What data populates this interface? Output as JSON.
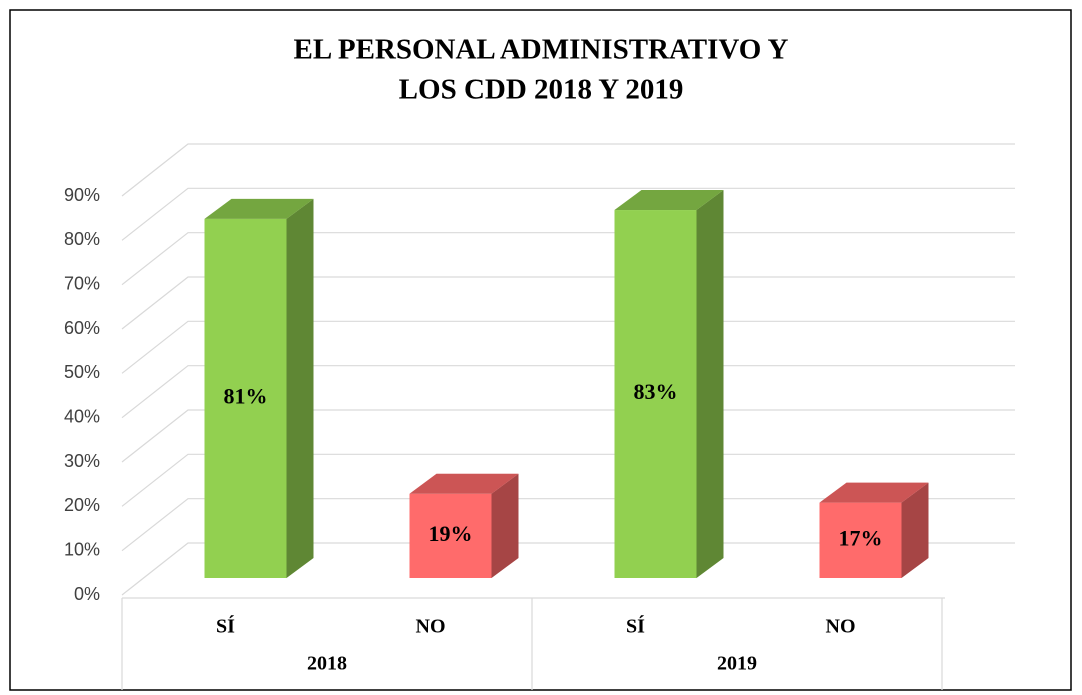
{
  "chart_data": {
    "type": "bar3d",
    "title": [
      "EL PERSONAL ADMINISTRATIVO Y",
      "LOS CDD 2018 Y 2019"
    ],
    "categories": [
      "SÍ",
      "NO",
      "SÍ",
      "NO"
    ],
    "groups": [
      "2018",
      "2019"
    ],
    "values": [
      81,
      19,
      83,
      17
    ],
    "value_labels": [
      "81%",
      "19%",
      "83%",
      "17%"
    ],
    "colors": [
      "#92d050",
      "#ff6b6b",
      "#92d050",
      "#ff6b6b"
    ],
    "ylim": [
      0,
      90
    ],
    "yticks": [
      {
        "value": 0,
        "label": "0%"
      },
      {
        "value": 10,
        "label": "10%"
      },
      {
        "value": 20,
        "label": "20%"
      },
      {
        "value": 30,
        "label": "30%"
      },
      {
        "value": 40,
        "label": "40%"
      },
      {
        "value": 50,
        "label": "50%"
      },
      {
        "value": 60,
        "label": "60%"
      },
      {
        "value": 70,
        "label": "70%"
      },
      {
        "value": 80,
        "label": "80%"
      },
      {
        "value": 90,
        "label": "90%"
      }
    ],
    "grid": true
  }
}
